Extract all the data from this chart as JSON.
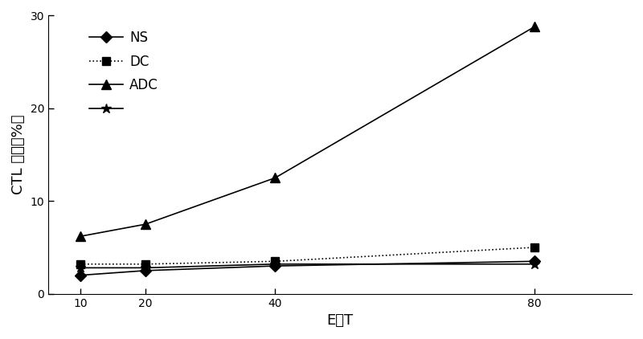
{
  "x": [
    10,
    20,
    40,
    80
  ],
  "series": [
    {
      "label": "NS",
      "values": [
        2.0,
        2.5,
        3.0,
        3.5
      ],
      "marker": "D",
      "linestyle": "-",
      "color": "#000000",
      "markersize": 7
    },
    {
      "label": "DC",
      "values": [
        3.2,
        3.2,
        3.5,
        5.0
      ],
      "marker": "s",
      "linestyle": ":",
      "color": "#000000",
      "markersize": 7
    },
    {
      "label": "ADC",
      "values": [
        6.2,
        7.5,
        12.5,
        28.8
      ],
      "marker": "^",
      "linestyle": "-",
      "color": "#000000",
      "markersize": 8
    },
    {
      "label": "",
      "values": [
        2.8,
        2.8,
        3.2,
        3.2
      ],
      "marker": "*",
      "linestyle": "-",
      "color": "#000000",
      "markersize": 9
    }
  ],
  "xlabel": "E：T",
  "ylabel": "CTL 活性（%）",
  "ylim": [
    0,
    30
  ],
  "yticks": [
    0,
    10,
    20,
    30
  ],
  "xticks": [
    10,
    20,
    40,
    80
  ],
  "title": "",
  "legend_labels": [
    "NS",
    "DC",
    "ADC",
    ""
  ],
  "background_color": "#ffffff"
}
